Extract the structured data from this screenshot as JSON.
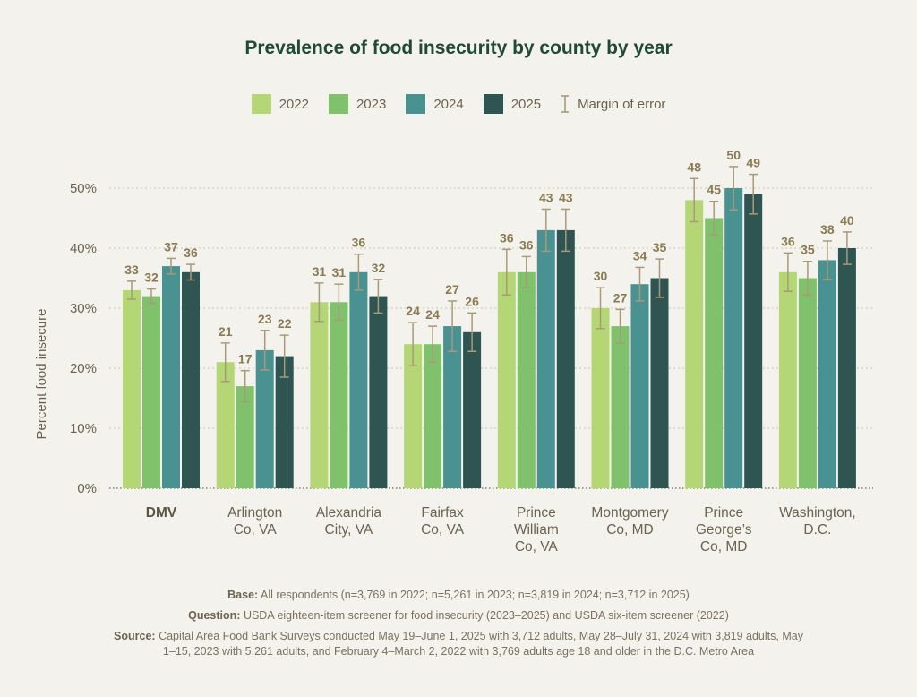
{
  "notes": {
    "base_label": "Base:",
    "base_text": "All respondents (n=3,769 in 2022; n=5,261 in 2023; n=3,819 in 2024; n=3,712 in 2025)",
    "question_label": "Question:",
    "question_text": "USDA eighteen-item screener for food insecurity (2023–2025) and USDA six-item screener (2022)",
    "source_label": "Source:",
    "source_text": "Capital Area Food Bank Surveys conducted May 19–June 1, 2025 with 3,712 adults, May 28–July 31, 2024 with 3,819 adults, May 1–15, 2023 with 5,261 adults, and February 4–March 2, 2022 with 3,769 adults age 18 and older in the D.C. Metro Area"
  },
  "legend": {
    "moe_label": "Margin of error"
  },
  "colors": {
    "2022": "#b5d675",
    "2023": "#80c26b",
    "2024": "#4a9191",
    "2025": "#2f5553",
    "error_bar": "#a89a78",
    "grid": "#c9c4b5",
    "title": "#1f4a35",
    "text": "#6b6350"
  },
  "chart_data": {
    "type": "bar",
    "title": "Prevalence of food insecurity by county by year",
    "ylabel": "Percent food insecure",
    "ylim": [
      0,
      50
    ],
    "yticks": [
      "0%",
      "10%",
      "20%",
      "30%",
      "40%",
      "50%"
    ],
    "ytick_values": [
      0,
      10,
      20,
      30,
      40,
      50
    ],
    "grid": true,
    "legend_position": "top-center",
    "categories": [
      [
        "DMV"
      ],
      [
        "Arlington",
        "Co, VA"
      ],
      [
        "Alexandria",
        "City, VA"
      ],
      [
        "Fairfax",
        "Co, VA"
      ],
      [
        "Prince",
        "William",
        "Co, VA"
      ],
      [
        "Montgomery",
        "Co, MD"
      ],
      [
        "Prince",
        "George’s",
        "Co, MD"
      ],
      [
        "Washington,",
        "D.C."
      ]
    ],
    "bold_categories": [
      0
    ],
    "series": [
      {
        "name": "2022",
        "values": [
          33,
          21,
          31,
          24,
          36,
          30,
          48,
          36
        ],
        "moe": [
          1.5,
          3.2,
          3.2,
          3.6,
          3.8,
          3.4,
          3.6,
          3.2
        ]
      },
      {
        "name": "2023",
        "values": [
          32,
          17,
          31,
          24,
          36,
          27,
          45,
          35
        ],
        "moe": [
          1.2,
          2.6,
          3.0,
          3.0,
          2.6,
          2.8,
          2.8,
          2.8
        ]
      },
      {
        "name": "2024",
        "values": [
          37,
          23,
          36,
          27,
          43,
          34,
          50,
          38
        ],
        "moe": [
          1.3,
          3.3,
          3.0,
          4.2,
          3.5,
          2.8,
          3.6,
          3.2
        ]
      },
      {
        "name": "2025",
        "values": [
          36,
          22,
          32,
          26,
          43,
          35,
          49,
          40
        ],
        "moe": [
          1.3,
          3.5,
          2.8,
          3.2,
          3.5,
          3.2,
          3.3,
          2.7
        ]
      }
    ]
  }
}
